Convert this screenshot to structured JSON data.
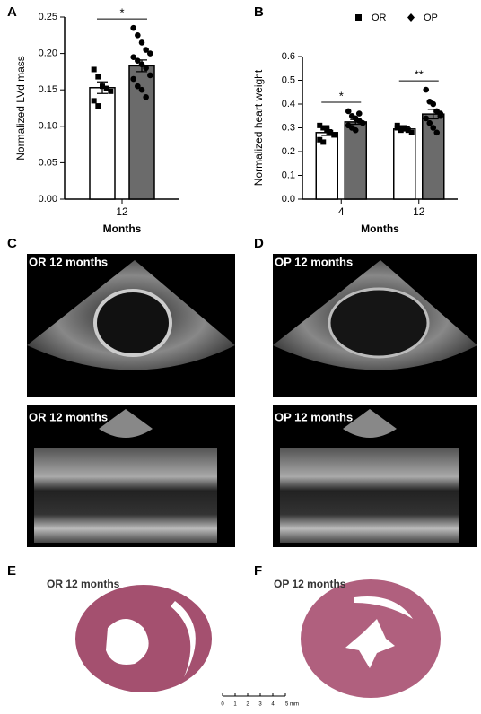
{
  "chart_data": [
    {
      "type": "bar",
      "panel": "A",
      "ylabel": "Normalized LVd mass",
      "xlabel": "Months",
      "categories": [
        "12"
      ],
      "series": [
        {
          "color": "#ffffff",
          "marker": "square",
          "values": [
            0.153
          ],
          "errors": [
            0.008
          ],
          "points": [
            [
              0.178,
              0.168,
              0.155,
              0.152,
              0.148,
              0.135,
              0.128
            ]
          ]
        },
        {
          "color": "#6b6b6b",
          "marker": "circle",
          "values": [
            0.183
          ],
          "errors": [
            0.008
          ],
          "points": [
            [
              0.235,
              0.225,
              0.215,
              0.205,
              0.2,
              0.195,
              0.19,
              0.185,
              0.18,
              0.17,
              0.165,
              0.155,
              0.15,
              0.14
            ]
          ]
        }
      ],
      "ylim": [
        0,
        0.25
      ],
      "yticks": [
        {
          "value": 0,
          "label": "0.00"
        },
        0.05,
        {
          "value": 0.1,
          "label": "0.10"
        },
        0.15,
        {
          "value": 0.2,
          "label": "0.20"
        },
        0.25
      ],
      "significance": [
        "*"
      ]
    },
    {
      "type": "bar",
      "panel": "B",
      "ylabel": "Normalized heart weight",
      "xlabel": "Months",
      "categories": [
        "4",
        "12"
      ],
      "legend": "top-right",
      "series": [
        {
          "name": "OR",
          "color": "#ffffff",
          "marker": "square",
          "values": [
            0.28,
            0.295
          ],
          "errors": [
            0.012,
            0.008
          ],
          "points": [
            [
              0.31,
              0.3,
              0.29,
              0.28,
              0.27,
              0.25,
              0.24,
              0.3
            ],
            [
              0.31,
              0.3,
              0.3,
              0.29,
              0.28,
              0.3,
              0.29
            ]
          ]
        },
        {
          "name": "OP",
          "color": "#6b6b6b",
          "marker": "circle",
          "values": [
            0.325,
            0.358
          ],
          "errors": [
            0.01,
            0.02
          ],
          "points": [
            [
              0.37,
              0.35,
              0.34,
              0.33,
              0.32,
              0.31,
              0.3,
              0.29,
              0.36
            ],
            [
              0.46,
              0.41,
              0.4,
              0.37,
              0.36,
              0.34,
              0.32,
              0.3,
              0.28,
              0.35
            ]
          ]
        }
      ],
      "ylim": [
        0,
        0.6
      ],
      "yticks": [
        {
          "value": 0,
          "label": "0.0"
        },
        0.1,
        0.2,
        0.3,
        0.4,
        0.5,
        0.6
      ],
      "significance": [
        "*",
        "**"
      ]
    }
  ],
  "panels": [
    {
      "label": "C",
      "captions": [
        "OR 12 months",
        "OR 12 months"
      ]
    },
    {
      "label": "D",
      "captions": [
        "OP 12 months",
        "OP 12 months"
      ]
    },
    {
      "label": "E",
      "caption": "OR 12 months"
    },
    {
      "label": "F",
      "caption": "OP 12 months"
    }
  ],
  "scale_bar": [
    "0",
    "1",
    "2",
    "3",
    "4",
    "5 mm"
  ]
}
